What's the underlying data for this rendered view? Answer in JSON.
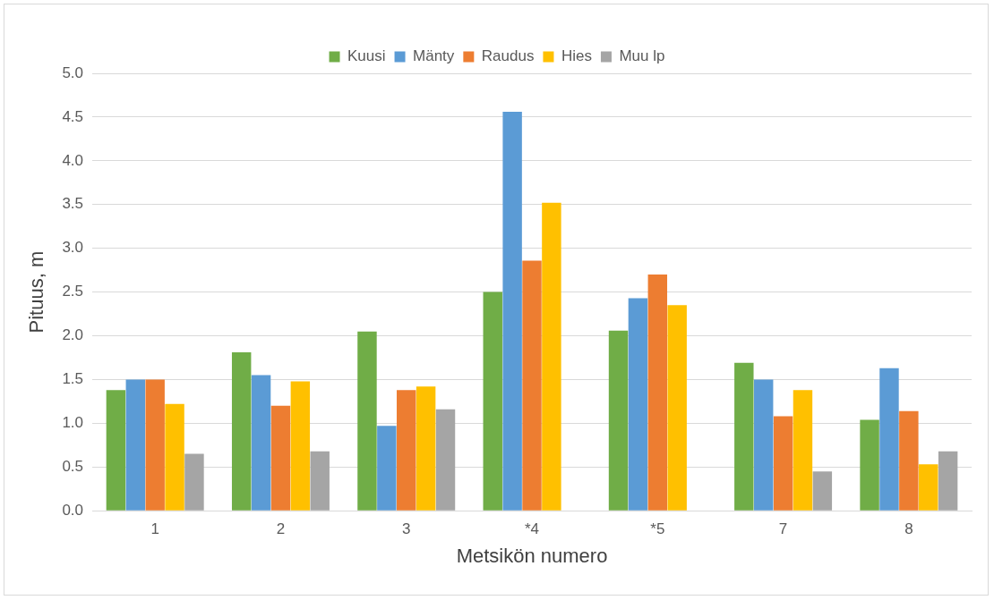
{
  "chart_data": {
    "type": "bar",
    "xlabel": "Metsikön numero",
    "ylabel": "Pituus, m",
    "categories": [
      "1",
      "2",
      "3",
      "*4",
      "*5",
      "7",
      "8"
    ],
    "series": [
      {
        "name": "Kuusi",
        "color": "#70ad47",
        "values": [
          1.38,
          1.81,
          2.05,
          2.5,
          2.06,
          1.69,
          1.04
        ]
      },
      {
        "name": "Mänty",
        "color": "#5b9bd5",
        "values": [
          1.5,
          1.55,
          0.97,
          4.56,
          2.43,
          1.5,
          1.63
        ]
      },
      {
        "name": "Raudus",
        "color": "#ed7d31",
        "values": [
          1.5,
          1.2,
          1.38,
          2.86,
          2.7,
          1.08,
          1.14
        ]
      },
      {
        "name": "Hies",
        "color": "#ffc000",
        "values": [
          1.22,
          1.48,
          1.42,
          3.52,
          2.35,
          1.38,
          0.53
        ]
      },
      {
        "name": "Muu lp",
        "color": "#a5a5a5",
        "values": [
          0.65,
          0.68,
          1.16,
          null,
          null,
          0.45,
          0.68
        ]
      }
    ],
    "ylim": [
      0,
      5
    ],
    "yticks": [
      {
        "value": 0,
        "label": "0.0"
      },
      {
        "value": 0.5,
        "label": "0.5"
      },
      {
        "value": 1,
        "label": "1.0"
      },
      {
        "value": 1.5,
        "label": "1.5"
      },
      {
        "value": 2,
        "label": "2.0"
      },
      {
        "value": 2.5,
        "label": "2.5"
      },
      {
        "value": 3,
        "label": "3.0"
      },
      {
        "value": 3.5,
        "label": "3.5"
      },
      {
        "value": 4,
        "label": "4.0"
      },
      {
        "value": 4.5,
        "label": "4.5"
      },
      {
        "value": 5,
        "label": "5.0"
      }
    ],
    "grid": "y",
    "legend": "top"
  }
}
